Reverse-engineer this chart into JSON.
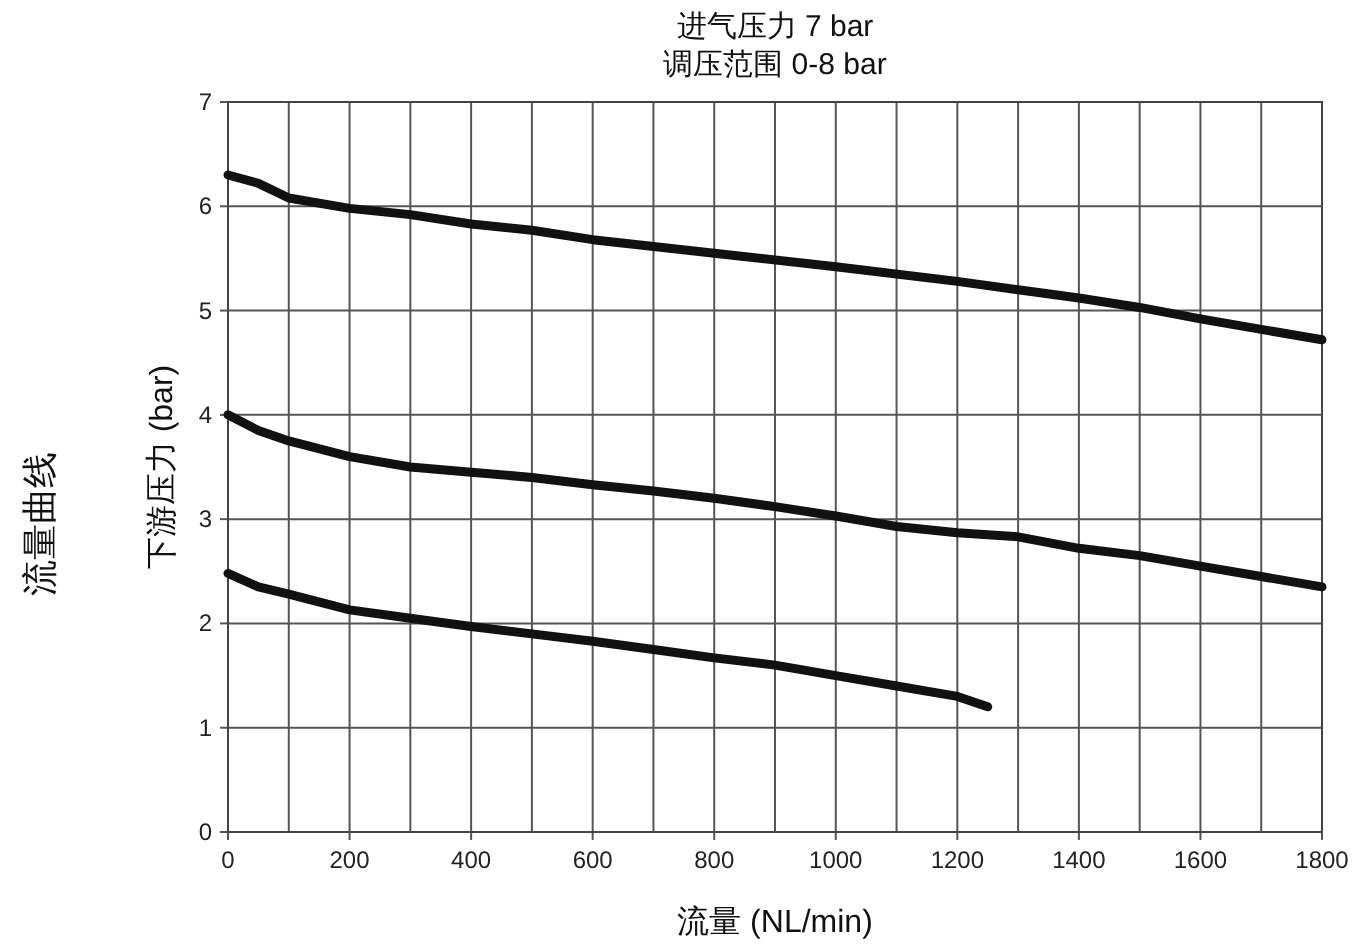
{
  "chart_data": {
    "type": "line",
    "title": "进气压力 7 bar\n调压范围 0-8 bar",
    "xlabel": "流量 (NL/min)",
    "ylabel": "下游压力 (bar)",
    "annotations": [
      "流量曲线"
    ],
    "xlim": [
      0,
      1800
    ],
    "ylim": [
      0,
      7
    ],
    "xticks": [
      0,
      {
        "value": 100,
        "label": null
      },
      200,
      {
        "value": 300,
        "label": null
      },
      400,
      {
        "value": 500,
        "label": null
      },
      600,
      {
        "value": 700,
        "label": null
      },
      800,
      {
        "value": 900,
        "label": null
      },
      1000,
      {
        "value": 1100,
        "label": null
      },
      1200,
      {
        "value": 1300,
        "label": null
      },
      1400,
      {
        "value": 1500,
        "label": null
      },
      1600,
      {
        "value": 1700,
        "label": null
      },
      1800
    ],
    "yticks": [
      0,
      1,
      2,
      3,
      4,
      5,
      6,
      7
    ],
    "grid": true,
    "marker": "none",
    "line_style": "solid",
    "series": [
      {
        "color": "#111111",
        "x": [
          0,
          50,
          100,
          200,
          300,
          400,
          500,
          600,
          800,
          1000,
          1200,
          1300,
          1400,
          1500,
          1600,
          1800
        ],
        "values": [
          6.3,
          6.22,
          6.08,
          5.98,
          5.92,
          5.83,
          5.77,
          5.68,
          5.55,
          5.42,
          5.28,
          5.2,
          5.12,
          5.03,
          4.92,
          4.72
        ]
      },
      {
        "color": "#111111",
        "x": [
          0,
          50,
          100,
          200,
          300,
          400,
          500,
          600,
          700,
          800,
          900,
          1000,
          1100,
          1200,
          1300,
          1400,
          1500,
          1600,
          1700,
          1800
        ],
        "values": [
          4.0,
          3.85,
          3.75,
          3.6,
          3.5,
          3.45,
          3.4,
          3.33,
          3.27,
          3.2,
          3.12,
          3.03,
          2.93,
          2.87,
          2.83,
          2.72,
          2.65,
          2.55,
          2.45,
          2.35
        ]
      },
      {
        "color": "#111111",
        "x": [
          0,
          50,
          100,
          200,
          300,
          400,
          500,
          600,
          700,
          800,
          900,
          1000,
          1100,
          1200,
          1250
        ],
        "values": [
          2.48,
          2.35,
          2.28,
          2.13,
          2.05,
          1.97,
          1.9,
          1.83,
          1.75,
          1.67,
          1.6,
          1.5,
          1.4,
          1.3,
          1.2
        ]
      }
    ]
  }
}
